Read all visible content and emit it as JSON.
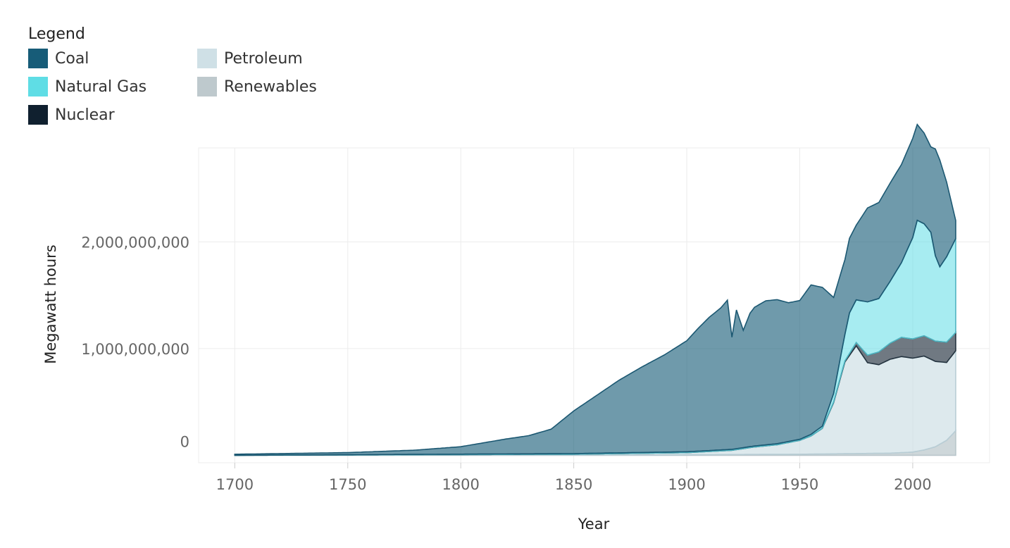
{
  "chart_data": {
    "type": "area",
    "stacked": true,
    "title": "",
    "xlabel": "Year",
    "ylabel": "Megawatt hours",
    "xlim": [
      1684,
      2034
    ],
    "ylim": [
      -70000000,
      2880000000
    ],
    "x_ticks": [
      1700,
      1750,
      1800,
      1850,
      1900,
      1950,
      2000
    ],
    "x_tick_labels": [
      "1700",
      "1750",
      "1800",
      "1850",
      "1900",
      "1950",
      "2000"
    ],
    "y_ticks": [
      0,
      1000000000,
      2000000000
    ],
    "y_tick_labels": [
      "0",
      "1,000,000,000",
      "2,000,000,000"
    ],
    "grid": true,
    "legend": {
      "title": "Legend",
      "position": "top-left",
      "entries": [
        "Coal",
        "Natural Gas",
        "Nuclear",
        "Petroleum",
        "Renewables"
      ]
    },
    "colors": {
      "Coal": "#175c78",
      "Natural Gas": "#5fdde5",
      "Nuclear": "#10202f",
      "Petroleum": "#cfe0e6",
      "Renewables": "#bec9cd"
    },
    "series": [
      {
        "name": "Renewables",
        "x": [
          1700,
          1850,
          1900,
          1950,
          1970,
          1990,
          2000,
          2005,
          2010,
          2015,
          2019
        ],
        "values": [
          0,
          2000000,
          5000000,
          10000000,
          15000000,
          20000000,
          30000000,
          50000000,
          80000000,
          140000000,
          230000000
        ]
      },
      {
        "name": "Petroleum",
        "x": [
          1700,
          1850,
          1900,
          1920,
          1930,
          1940,
          1950,
          1955,
          1960,
          1965,
          1970,
          1975,
          1980,
          1985,
          1990,
          1995,
          2000,
          2005,
          2010,
          2015,
          2019
        ],
        "values": [
          0,
          8000000,
          20000000,
          40000000,
          70000000,
          90000000,
          130000000,
          170000000,
          240000000,
          480000000,
          860000000,
          1010000000,
          850000000,
          830000000,
          880000000,
          900000000,
          880000000,
          880000000,
          800000000,
          730000000,
          750000000
        ]
      },
      {
        "name": "Nuclear",
        "x": [
          1700,
          1955,
          1960,
          1965,
          1970,
          1975,
          1980,
          1985,
          1990,
          1995,
          2000,
          2005,
          2010,
          2015,
          2019
        ],
        "values": [
          0,
          0,
          1000000,
          5000000,
          10000000,
          30000000,
          70000000,
          120000000,
          150000000,
          180000000,
          180000000,
          190000000,
          190000000,
          190000000,
          170000000
        ]
      },
      {
        "name": "Natural Gas",
        "x": [
          1700,
          1950,
          1960,
          1965,
          1970,
          1972,
          1975,
          1980,
          1985,
          1990,
          1995,
          2000,
          2002,
          2005,
          2008,
          2010,
          2012,
          2015,
          2019
        ],
        "values": [
          0,
          10000000,
          20000000,
          80000000,
          250000000,
          380000000,
          400000000,
          500000000,
          500000000,
          580000000,
          700000000,
          950000000,
          1100000000,
          1050000000,
          1000000000,
          800000000,
          700000000,
          800000000,
          880000000
        ]
      },
      {
        "name": "Coal",
        "x": [
          1700,
          1750,
          1780,
          1800,
          1820,
          1830,
          1840,
          1850,
          1860,
          1870,
          1880,
          1890,
          1900,
          1905,
          1910,
          1915,
          1918,
          1920,
          1922,
          1925,
          1928,
          1930,
          1935,
          1940,
          1945,
          1950,
          1955,
          1960,
          1965,
          1970,
          1975,
          1980,
          1985,
          1990,
          1995,
          2000,
          2005,
          2008,
          2010,
          2012,
          2015,
          2019
        ],
        "values": [
          10000000,
          20000000,
          40000000,
          70000000,
          140000000,
          170000000,
          230000000,
          400000000,
          540000000,
          680000000,
          800000000,
          910000000,
          1040000000,
          1150000000,
          1250000000,
          1330000000,
          1400000000,
          1050000000,
          1300000000,
          1100000000,
          1250000000,
          1300000000,
          1350000000,
          1350000000,
          1300000000,
          1300000000,
          1400000000,
          1300000000,
          900000000,
          700000000,
          700000000,
          880000000,
          900000000,
          920000000,
          920000000,
          930000000,
          850000000,
          800000000,
          1000000000,
          1000000000,
          700000000,
          170000000
        ]
      }
    ]
  }
}
